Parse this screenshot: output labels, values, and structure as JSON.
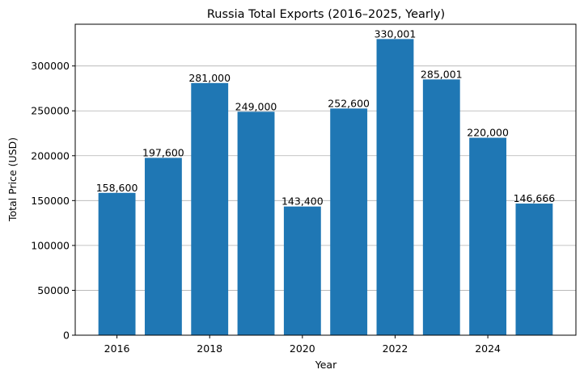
{
  "chart_data": {
    "type": "bar",
    "title": "Russia Total Exports (2016–2025, Yearly)",
    "xlabel": "Year",
    "ylabel": "Total Price (USD)",
    "x": [
      2016,
      2017,
      2018,
      2019,
      2020,
      2021,
      2022,
      2023,
      2024,
      2025
    ],
    "values": [
      158600,
      197600,
      281000,
      249000,
      143400,
      252600,
      330001,
      285001,
      220000,
      146666
    ],
    "data_labels": [
      "158,600",
      "197,600",
      "281,000",
      "249,000",
      "143,400",
      "252,600",
      "330,001",
      "285,001",
      "220,000",
      "146,666"
    ],
    "xlim": [
      2015.1,
      2025.9
    ],
    "ylim": [
      0,
      346500
    ],
    "xticks": [
      2016,
      2018,
      2020,
      2022,
      2024
    ],
    "yticks": [
      0,
      50000,
      100000,
      150000,
      200000,
      250000,
      300000
    ],
    "grid": "y",
    "bar_color": "#1f77b4"
  }
}
